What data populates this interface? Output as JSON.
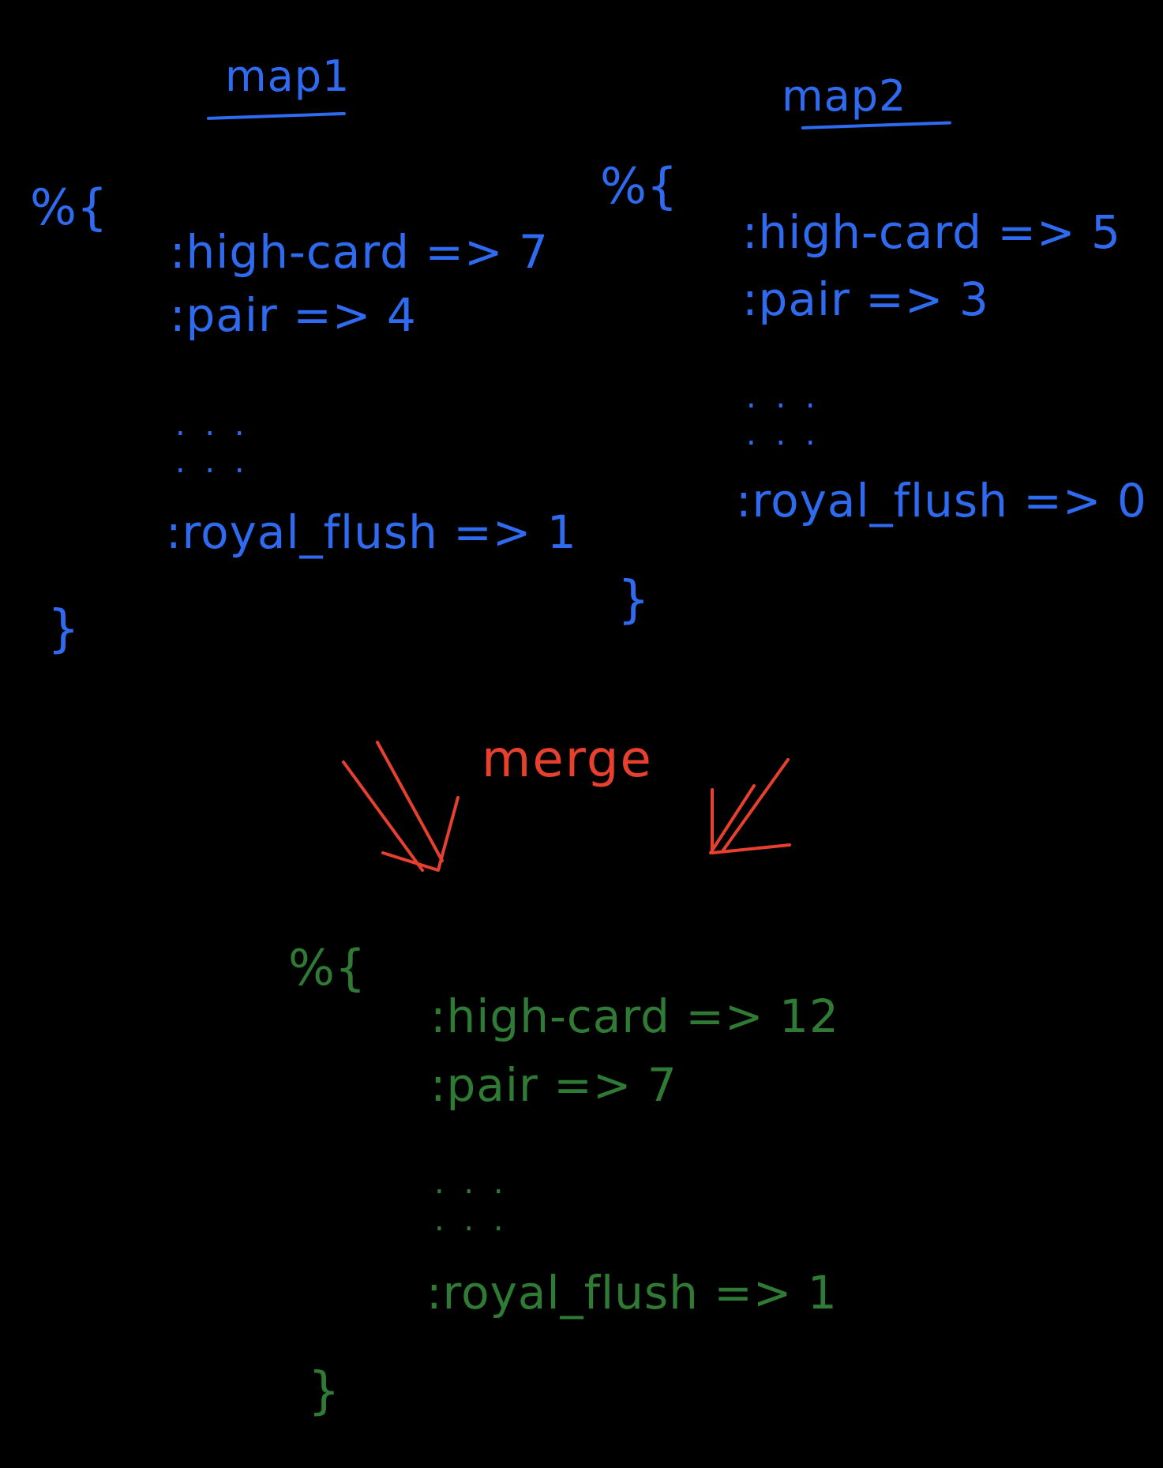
{
  "colors": {
    "input_maps": "#2f6bf0",
    "merge": "#e8402e",
    "result_map": "#2f7a34",
    "background": "#000000"
  },
  "map1": {
    "title": "map1",
    "open": "%{",
    "entries": [
      ":high-card => 7",
      ":pair => 4",
      ":royal_flush => 1"
    ],
    "ellipsis": ". . .",
    "close": "}"
  },
  "map2": {
    "title": "map2",
    "open": "%{",
    "entries": [
      ":high-card => 5",
      ":pair => 3",
      ":royal_flush => 0"
    ],
    "ellipsis": ". . .",
    "close": "}"
  },
  "merge": {
    "label": "merge"
  },
  "result": {
    "open": "%{",
    "entries": [
      ":high-card => 12",
      ":pair => 7",
      ":royal_flush => 1"
    ],
    "ellipsis": ". . .",
    "close": "}"
  }
}
